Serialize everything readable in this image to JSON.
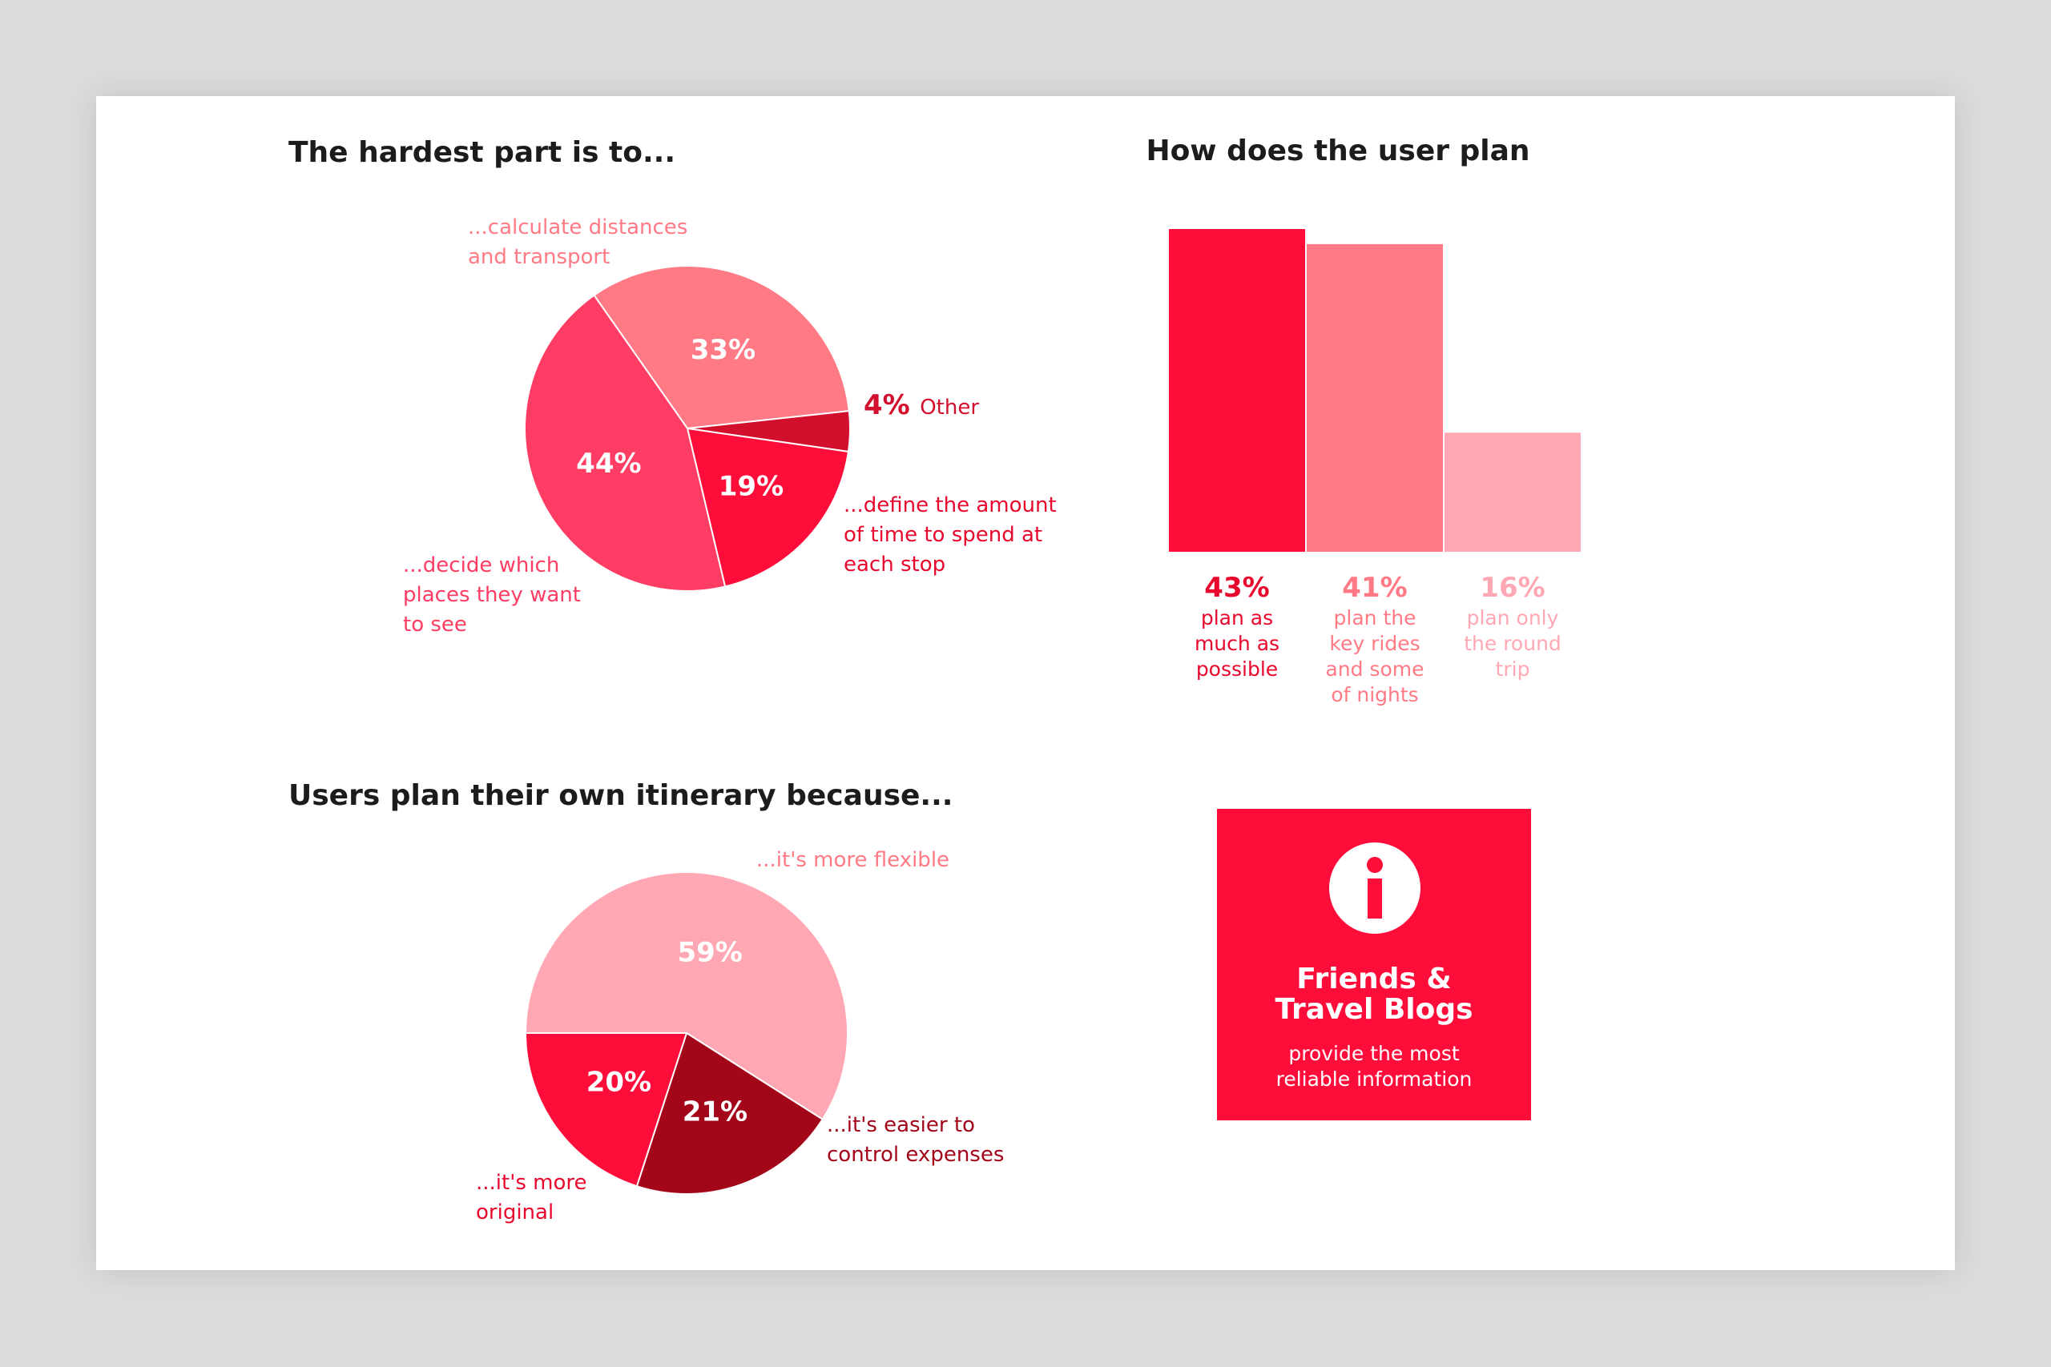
{
  "chart_data": [
    {
      "type": "pie",
      "title": "The hardest part is to...",
      "slices": [
        {
          "label": "...calculate distances and transport",
          "value": 33,
          "display": "33%",
          "color": "#ff7a85"
        },
        {
          "label": "Other",
          "value": 4,
          "display": "4%",
          "color": "#d20f2c"
        },
        {
          "label": "...define the amount of time to spend at each stop",
          "value": 19,
          "display": "19%",
          "color": "#ff0d3a"
        },
        {
          "label": "...decide which places they want to see",
          "value": 44,
          "display": "44%",
          "color": "#ff3c63"
        }
      ]
    },
    {
      "type": "bar",
      "title": "How does the user plan",
      "categories": [
        "plan as much as possible",
        "plan the key rides and some of nights",
        "plan only the round trip"
      ],
      "values": [
        43,
        41,
        16
      ],
      "display": [
        "43%",
        "41%",
        "16%"
      ],
      "colors": [
        "#ff0d3a",
        "#ff7a85",
        "#ffa8b4"
      ],
      "ylim": [
        0,
        43
      ]
    },
    {
      "type": "pie",
      "title": "Users plan their own itinerary because...",
      "slices": [
        {
          "label": "...it's more flexible",
          "value": 59,
          "display": "59%",
          "color": "#ffa8b4"
        },
        {
          "label": "...it's easier to control expenses",
          "value": 21,
          "display": "21%",
          "color": "#a30519"
        },
        {
          "label": "...it's more original",
          "value": 20,
          "display": "20%",
          "color": "#ff0d3a"
        }
      ]
    }
  ],
  "pie1_labels": {
    "calc_line1": "...calculate distances",
    "calc_line2": "and transport",
    "other": "Other",
    "define_line1": "...define the amount",
    "define_line2": "of time to spend at",
    "define_line3": "each stop",
    "decide_line1": "...decide which",
    "decide_line2": "places they want",
    "decide_line3": "to see"
  },
  "bar_labels": [
    {
      "lines": [
        "plan as",
        "much as",
        "possible"
      ]
    },
    {
      "lines": [
        "plan the",
        "key rides",
        "and some",
        "of nights"
      ]
    },
    {
      "lines": [
        "plan only",
        "the round",
        "trip"
      ]
    }
  ],
  "pie2_labels": {
    "flexible": "...it's more flexible",
    "expenses_line1": "...it's easier to",
    "expenses_line2": "control expenses",
    "original_line1": "...it's more",
    "original_line2": "original"
  },
  "info": {
    "icon": "info-icon",
    "title_line1": "Friends &",
    "title_line2": "Travel Blogs",
    "sub_line1": "provide the most",
    "sub_line2": "reliable information",
    "color": "#ff0d3a"
  }
}
